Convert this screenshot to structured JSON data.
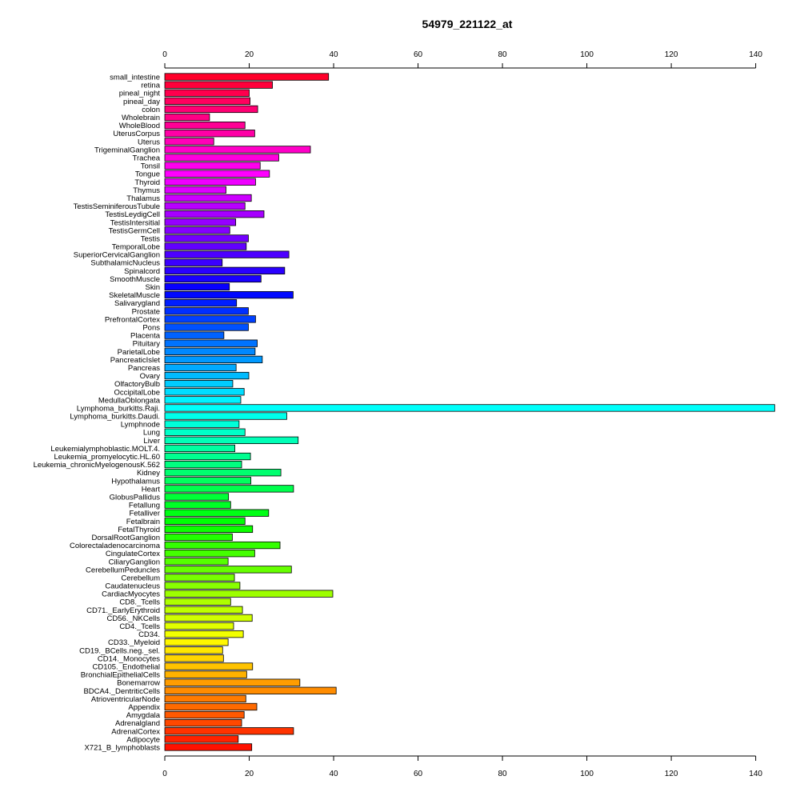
{
  "chart_data": {
    "type": "bar",
    "orientation": "horizontal",
    "title": "54979_221122_at",
    "xlabel": "",
    "ylabel": "",
    "xlim": [
      0,
      145
    ],
    "ticks": [
      0,
      20,
      40,
      60,
      80,
      100,
      120,
      140
    ],
    "tick_labels": [
      "0",
      "20",
      "40",
      "60",
      "80",
      "100",
      "120",
      "140"
    ],
    "axes": [
      "top",
      "bottom"
    ],
    "grid": false,
    "legend": "none",
    "color_scheme": "rainbow",
    "categories": [
      "small_intestine",
      "retina",
      "pineal_night",
      "pineal_day",
      "colon",
      "Wholebrain",
      "WholeBlood",
      "UterusCorpus",
      "Uterus",
      "TrigeminalGanglion",
      "Trachea",
      "Tonsil",
      "Tongue",
      "Thyroid",
      "Thymus",
      "Thalamus",
      "TestisSeminiferousTubule",
      "TestisLeydigCell",
      "TestisIntersitial",
      "TestisGermCell",
      "Testis",
      "TemporalLobe",
      "SuperiorCervicalGanglion",
      "SubthalamicNucleus",
      "Spinalcord",
      "SmoothMuscle",
      "Skin",
      "SkeletalMuscle",
      "Salivarygland",
      "Prostate",
      "PrefrontalCortex",
      "Pons",
      "Placenta",
      "Pituitary",
      "ParietalLobe",
      "PancreaticIslet",
      "Pancreas",
      "Ovary",
      "OlfactoryBulb",
      "OccipitalLobe",
      "MedullaOblongata",
      "Lymphoma_burkitts.Raji.",
      "Lymphoma_burkitts.Daudi.",
      "Lymphnode",
      "Lung",
      "Liver",
      "Leukemialymphoblastic.MOLT.4.",
      "Leukemia_promyelocytic.HL.60",
      "Leukemia_chronicMyelogenousK.562",
      "Kidney",
      "Hypothalamus",
      "Heart",
      "GlobusPallidus",
      "Fetallung",
      "Fetalliver",
      "Fetalbrain",
      "FetalThyroid",
      "DorsalRootGanglion",
      "Colorectaladenocarcinoma",
      "CingulateCortex",
      "CiliaryGanglion",
      "CerebellumPeduncles",
      "Cerebellum",
      "Caudatenucleus",
      "CardiacMyocytes",
      "CD8._Tcells",
      "CD71._EarlyErythroid",
      "CD56._NKCells",
      "CD4._Tcells",
      "CD34.",
      "CD33._Myeloid",
      "CD19._BCells.neg._sel.",
      "CD14._Monocytes",
      "CD105._Endothelial",
      "BronchialEpithelialCells",
      "Bonemarrow",
      "BDCA4._DentriticCells",
      "AtrioventricularNode",
      "Appendix",
      "Amygdala",
      "Adrenalgland",
      "AdrenalCortex",
      "Adipocyte",
      "X721_B_lymphoblasts"
    ],
    "values": [
      38.8,
      25.5,
      20,
      20.2,
      22,
      10.6,
      19,
      21.3,
      11.6,
      34.5,
      27,
      22.6,
      24.8,
      21.5,
      14.5,
      20.5,
      19,
      23.5,
      16.8,
      15.4,
      19.8,
      19.3,
      29.4,
      13.6,
      28.4,
      22.8,
      15.3,
      30.4,
      17,
      19.8,
      21.5,
      19.8,
      14,
      21.9,
      21.4,
      23.1,
      16.9,
      19.9,
      16.1,
      18.8,
      18,
      144.5,
      28.9,
      17.6,
      19,
      31.6,
      16.6,
      20.3,
      18.2,
      27.5,
      20.4,
      30.5,
      15.1,
      15.6,
      24.6,
      19,
      20.8,
      16,
      27.3,
      21.3,
      15,
      30,
      16.5,
      17.8,
      39.8,
      15.6,
      18.4,
      20.7,
      16.3,
      18.6,
      15,
      13.7,
      13.9,
      20.8,
      19.4,
      32,
      40.6,
      19.2,
      21.8,
      18.8,
      18.2,
      30.5,
      17.4,
      20.6
    ]
  }
}
